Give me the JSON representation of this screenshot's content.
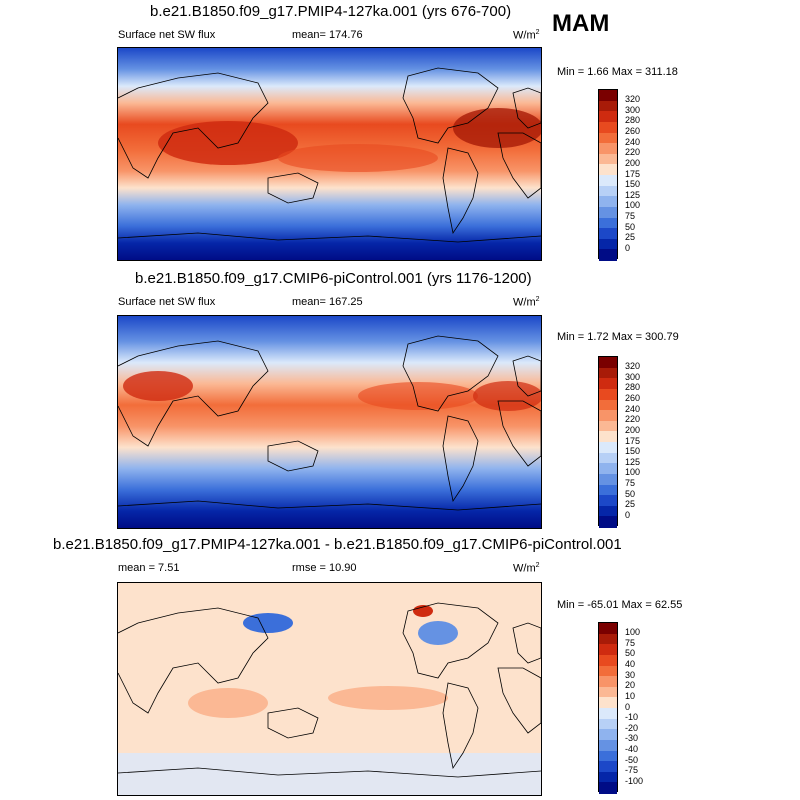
{
  "season": "MAM",
  "units_base": "W/m",
  "units_exp": "2",
  "panels": [
    {
      "title": "b.e21.B1850.f09_g17.PMIP4-127ka.001 (yrs 676-700)",
      "left_label": "Surface net SW flux",
      "center_label": "mean= 174.76",
      "minmax": "Min =   1.66 Max = 311.18",
      "colorbar_labels": [
        "320",
        "300",
        "280",
        "260",
        "240",
        "220",
        "200",
        "175",
        "150",
        "125",
        "100",
        "75",
        "50",
        "25",
        "0"
      ],
      "colorbar_colors": [
        "#7a0000",
        "#a81b08",
        "#cf2b10",
        "#e84a1f",
        "#f26d3a",
        "#f89468",
        "#fbb894",
        "#fde2cc",
        "#dbe9fb",
        "#b7d0f6",
        "#8fb3ee",
        "#6592e3",
        "#3b6fda",
        "#1c48c8",
        "#0526a8",
        "#000c86"
      ],
      "fields": {
        "tropics": "warm-band",
        "polar": "cold-band"
      }
    },
    {
      "title": "b.e21.B1850.f09_g17.CMIP6-piControl.001 (yrs 1176-1200)",
      "left_label": "Surface net SW flux",
      "center_label": "mean= 167.25",
      "minmax": "Min =   1.72 Max = 300.79",
      "colorbar_labels": [
        "320",
        "300",
        "280",
        "260",
        "240",
        "220",
        "200",
        "175",
        "150",
        "125",
        "100",
        "75",
        "50",
        "25",
        "0"
      ],
      "colorbar_colors": [
        "#7a0000",
        "#a81b08",
        "#cf2b10",
        "#e84a1f",
        "#f26d3a",
        "#f89468",
        "#fbb894",
        "#fde2cc",
        "#dbe9fb",
        "#b7d0f6",
        "#8fb3ee",
        "#6592e3",
        "#3b6fda",
        "#1c48c8",
        "#0526a8",
        "#000c86"
      ]
    },
    {
      "title": "b.e21.B1850.f09_g17.PMIP4-127ka.001 - b.e21.B1850.f09_g17.CMIP6-piControl.001",
      "left_label": "mean =   7.51",
      "center_label": "rmse =  10.90",
      "minmax": "Min = -65.01 Max =  62.55",
      "colorbar_labels": [
        "100",
        "75",
        "50",
        "40",
        "30",
        "20",
        "10",
        "0",
        "-10",
        "-20",
        "-30",
        "-40",
        "-50",
        "-75",
        "-100"
      ],
      "colorbar_colors": [
        "#7a0000",
        "#a81b08",
        "#cf2b10",
        "#e84a1f",
        "#f26d3a",
        "#f89468",
        "#fbb894",
        "#fde2cc",
        "#dbe9fb",
        "#b7d0f6",
        "#8fb3ee",
        "#6592e3",
        "#3b6fda",
        "#1c48c8",
        "#0526a8",
        "#000c86"
      ]
    }
  ]
}
